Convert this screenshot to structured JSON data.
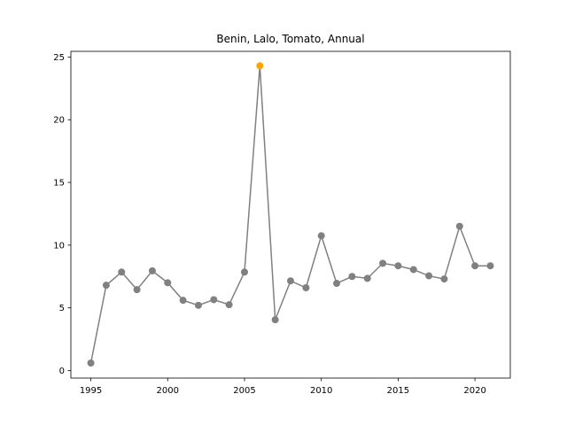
{
  "chart_data": {
    "type": "line",
    "title": "Benin, Lalo, Tomato, Annual",
    "xlabel": "",
    "ylabel": "",
    "xlim": [
      1993.7,
      2022.3
    ],
    "ylim": [
      -0.6,
      25.45
    ],
    "x_ticks": [
      1995,
      2000,
      2005,
      2010,
      2015,
      2020
    ],
    "y_ticks": [
      0,
      5,
      10,
      15,
      20,
      25
    ],
    "series": [
      {
        "name": "Tomato",
        "color": "#808080",
        "x": [
          1995,
          1996,
          1997,
          1998,
          1999,
          2000,
          2001,
          2002,
          2003,
          2004,
          2005,
          2006,
          2007,
          2008,
          2009,
          2010,
          2011,
          2012,
          2013,
          2014,
          2015,
          2016,
          2017,
          2018,
          2019,
          2020,
          2021
        ],
        "y": [
          0.6,
          6.8,
          7.85,
          6.45,
          7.95,
          7.0,
          5.6,
          5.2,
          5.65,
          5.25,
          7.85,
          24.3,
          4.05,
          7.15,
          6.6,
          10.75,
          6.95,
          7.5,
          7.35,
          8.55,
          8.35,
          8.05,
          7.55,
          7.3,
          11.5,
          8.35,
          8.35
        ]
      }
    ],
    "highlight": {
      "x": 2006,
      "y": 24.3,
      "color": "#FFA500"
    },
    "grid": false,
    "legend": "none"
  }
}
